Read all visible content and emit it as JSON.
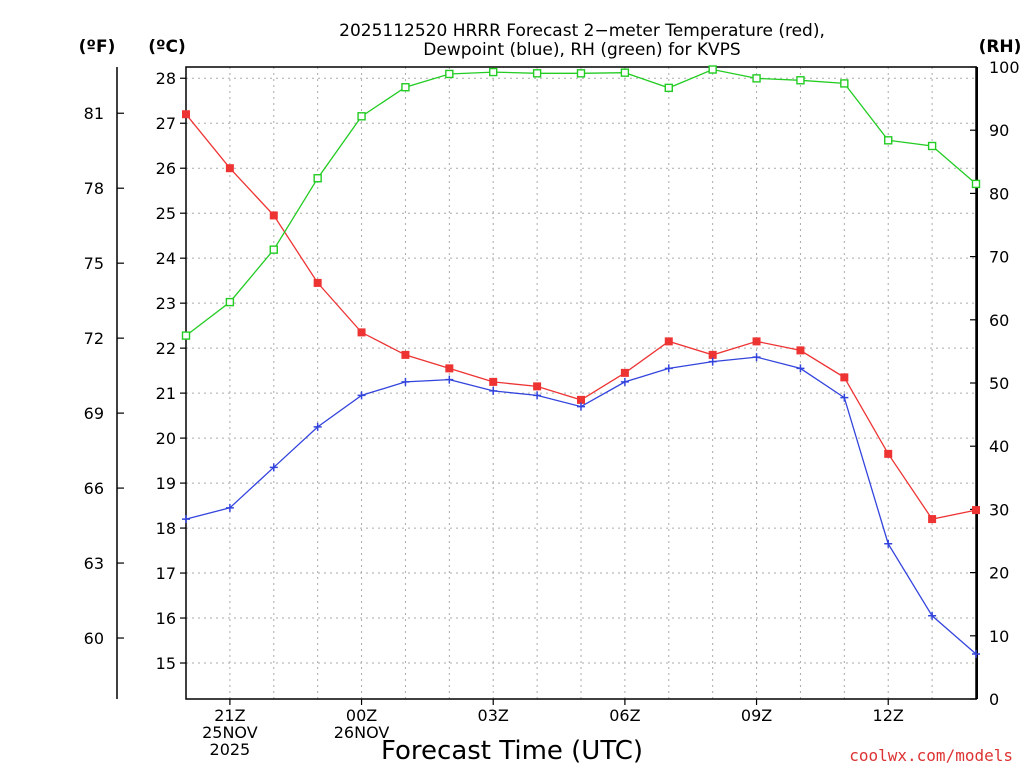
{
  "chart_data": {
    "type": "line",
    "title_lines": [
      "2025112520 HRRR Forecast 2−meter Temperature (red),",
      "Dewpoint (blue), RH (green) for KVPS"
    ],
    "left_unit_f": "(ºF)",
    "left_unit_c": "(ºC)",
    "right_unit": "(RH)",
    "xlabel": "Forecast Time (UTC)",
    "credit": "coolwx.com/models",
    "x_hours": [
      20,
      21,
      22,
      23,
      24,
      25,
      26,
      27,
      28,
      29,
      30,
      31,
      32,
      33,
      34,
      35,
      36,
      37,
      38
    ],
    "x_range": [
      20,
      38
    ],
    "x_ticks": [
      {
        "hour": 21,
        "lines": [
          "21Z",
          "25NOV",
          "2025"
        ]
      },
      {
        "hour": 24,
        "lines": [
          "00Z",
          "26NOV"
        ]
      },
      {
        "hour": 27,
        "lines": [
          "03Z"
        ]
      },
      {
        "hour": 30,
        "lines": [
          "06Z"
        ]
      },
      {
        "hour": 33,
        "lines": [
          "09Z"
        ]
      },
      {
        "hour": 36,
        "lines": [
          "12Z"
        ]
      }
    ],
    "celsius_axis": {
      "range": [
        14.2,
        28.25
      ],
      "ticks": [
        15,
        16,
        17,
        18,
        19,
        20,
        21,
        22,
        23,
        24,
        25,
        26,
        27,
        28
      ]
    },
    "fahrenheit_axis": {
      "ticks": [
        60,
        63,
        66,
        69,
        72,
        75,
        78,
        81
      ]
    },
    "rh_axis": {
      "range": [
        0,
        100
      ],
      "ticks": [
        0,
        10,
        20,
        30,
        40,
        50,
        60,
        70,
        80,
        90,
        100
      ]
    },
    "colors": {
      "temperature": "#ee3333",
      "dewpoint": "#3344dd",
      "rh": "#22cc22",
      "grid": "#aaaaaa",
      "credit": "#dd3333"
    },
    "series": [
      {
        "name": "Temperature",
        "axis": "celsius",
        "values": [
          27.2,
          26.0,
          24.95,
          23.45,
          22.35,
          21.85,
          21.55,
          21.25,
          21.15,
          20.85,
          21.45,
          22.15,
          21.85,
          22.15,
          21.95,
          21.35,
          19.65,
          18.2,
          18.4
        ]
      },
      {
        "name": "Dewpoint",
        "axis": "celsius",
        "values": [
          18.2,
          18.45,
          19.35,
          20.25,
          20.95,
          21.25,
          21.3,
          21.05,
          20.95,
          20.7,
          21.25,
          21.55,
          21.7,
          21.8,
          21.55,
          20.9,
          17.65,
          16.05,
          15.2
        ]
      },
      {
        "name": "RH",
        "axis": "rh",
        "values": [
          57.5,
          62.8,
          71.1,
          82.4,
          92.2,
          96.8,
          98.9,
          99.2,
          99.0,
          99.0,
          99.1,
          96.7,
          99.6,
          98.2,
          97.9,
          97.4,
          88.4,
          87.5,
          81.5
        ]
      }
    ]
  }
}
